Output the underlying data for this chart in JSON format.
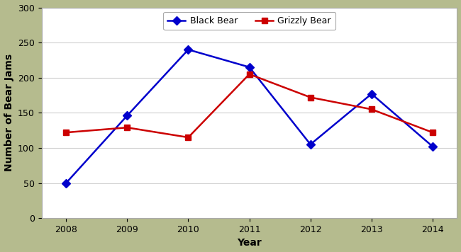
{
  "years": [
    2008,
    2009,
    2010,
    2011,
    2012,
    2013,
    2014
  ],
  "black_bear": [
    50,
    146,
    240,
    215,
    105,
    177,
    102
  ],
  "grizzly_bear": [
    122,
    129,
    115,
    205,
    172,
    155,
    122
  ],
  "black_bear_color": "#0000CC",
  "grizzly_bear_color": "#CC0000",
  "xlabel": "Year",
  "ylabel": "Number of Bear Jams",
  "ylim": [
    0,
    300
  ],
  "yticks": [
    0,
    50,
    100,
    150,
    200,
    250,
    300
  ],
  "legend_black": "Black Bear",
  "legend_grizzly": "Grizzly Bear",
  "background_color": "#ffffff",
  "border_color": "#b5bb8e",
  "grid_color": "#d0d0d0",
  "marker_style_black": "D",
  "marker_style_grizzly": "s",
  "line_width": 1.8,
  "marker_size": 6,
  "tick_fontsize": 9,
  "label_fontsize": 10
}
